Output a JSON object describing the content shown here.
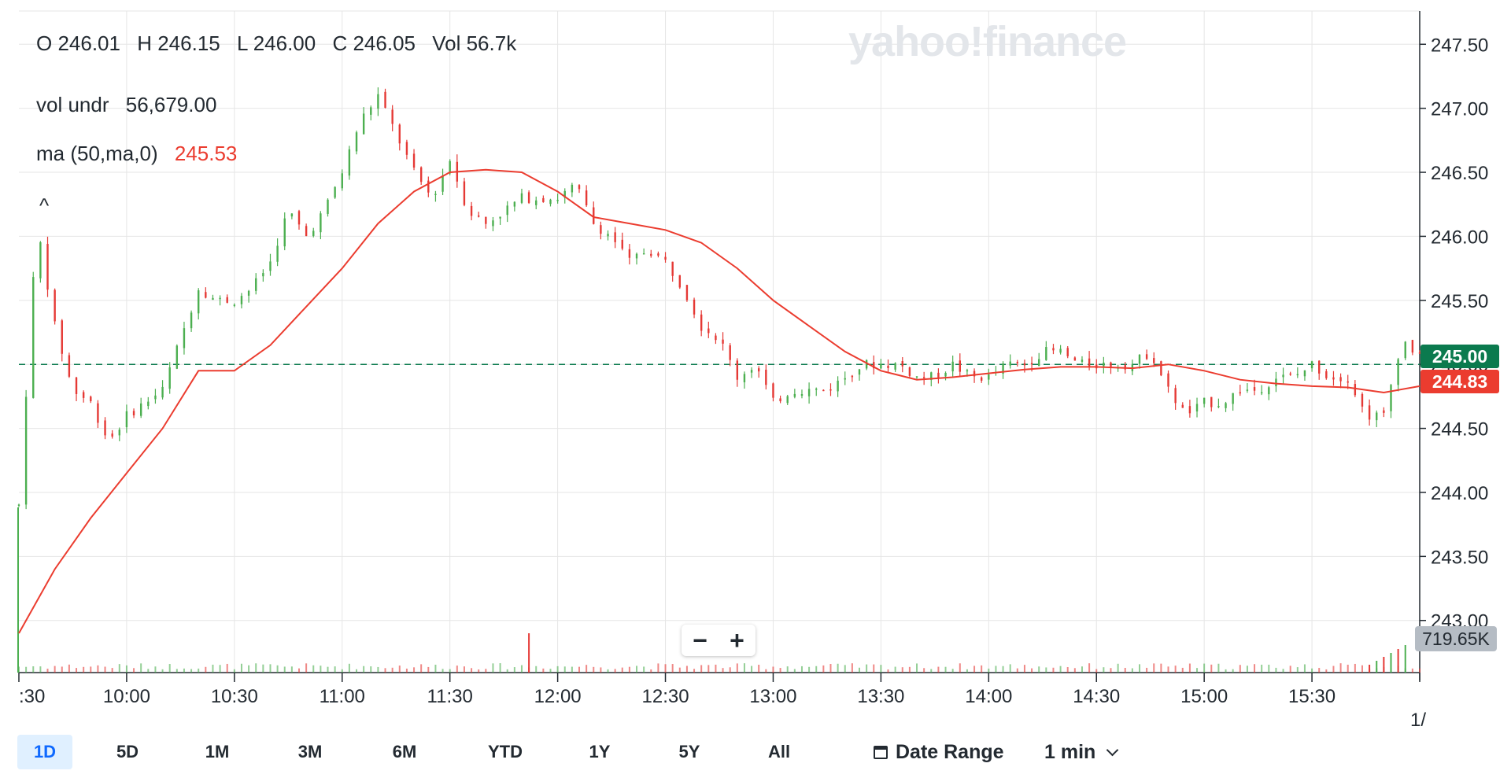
{
  "legend": {
    "open": "O 246.01",
    "high": "H 246.15",
    "low": "L 246.00",
    "close": "C 246.05",
    "vol": "Vol 56.7k",
    "vol_undr_label": "vol undr",
    "vol_undr_value": "56,679.00",
    "ma_label": "ma (50,ma,0)",
    "ma_value": "245.53",
    "collapse_glyph": "^"
  },
  "watermark": "yahoo!finance",
  "zoom": {
    "minus": "−",
    "plus": "+"
  },
  "tags": {
    "last_price": "245.00",
    "ma_price": "244.83",
    "volume": "719.65K"
  },
  "range_buttons": [
    {
      "label": "1D",
      "active": true
    },
    {
      "label": "5D",
      "active": false
    },
    {
      "label": "1M",
      "active": false
    },
    {
      "label": "3M",
      "active": false
    },
    {
      "label": "6M",
      "active": false
    },
    {
      "label": "YTD",
      "active": false
    },
    {
      "label": "1Y",
      "active": false
    },
    {
      "label": "5Y",
      "active": false
    },
    {
      "label": "All",
      "active": false
    }
  ],
  "date_range_label": "Date Range",
  "interval_label": "1 min",
  "colors": {
    "up": "#4caf50",
    "down": "#e53935",
    "ma": "#eb3c2f",
    "grid": "#e6e6e6",
    "ref_line": "#0b7a4e"
  },
  "chart_data": {
    "type": "line",
    "y_ticks": [
      "247.50",
      "247.00",
      "246.50",
      "246.00",
      "245.50",
      "245.00",
      "244.50",
      "244.00",
      "243.50",
      "243.00"
    ],
    "x_ticks": [
      ":30",
      "10:00",
      "10:30",
      "11:00",
      "11:30",
      "12:00",
      "12:30",
      "13:00",
      "13:30",
      "14:00",
      "14:30",
      "15:00",
      "15:30",
      "1/"
    ],
    "ylim": [
      242.9,
      247.6
    ],
    "reference_line": 245.0,
    "series": [
      {
        "name": "price",
        "x": [
          "09:30",
          "09:35",
          "09:40",
          "09:45",
          "09:50",
          "09:55",
          "10:00",
          "10:05",
          "10:10",
          "10:15",
          "10:20",
          "10:25",
          "10:30",
          "10:35",
          "10:40",
          "10:45",
          "10:50",
          "10:55",
          "11:00",
          "11:05",
          "11:10",
          "11:15",
          "11:20",
          "11:25",
          "11:30",
          "11:35",
          "11:40",
          "11:45",
          "11:50",
          "11:55",
          "12:00",
          "12:05",
          "12:10",
          "12:15",
          "12:20",
          "12:25",
          "12:30",
          "12:35",
          "12:40",
          "12:45",
          "12:50",
          "12:55",
          "13:00",
          "13:05",
          "13:10",
          "13:15",
          "13:20",
          "13:25",
          "13:30",
          "13:35",
          "13:40",
          "13:45",
          "13:50",
          "13:55",
          "14:00",
          "14:05",
          "14:10",
          "14:15",
          "14:20",
          "14:25",
          "14:30",
          "14:35",
          "14:40",
          "14:45",
          "14:50",
          "14:55",
          "15:00",
          "15:05",
          "15:10",
          "15:15",
          "15:20",
          "15:25",
          "15:30",
          "15:35",
          "15:40",
          "15:45",
          "15:50",
          "15:55",
          "16:00"
        ],
        "values": [
          243.9,
          246.1,
          245.3,
          244.8,
          244.7,
          244.4,
          244.6,
          244.7,
          244.8,
          245.2,
          245.6,
          245.5,
          245.5,
          245.6,
          245.8,
          246.2,
          246.0,
          246.2,
          246.5,
          246.9,
          247.1,
          246.8,
          246.5,
          246.3,
          246.6,
          246.2,
          246.1,
          246.2,
          246.3,
          246.3,
          246.3,
          246.4,
          246.1,
          246.0,
          245.8,
          245.9,
          245.8,
          245.6,
          245.3,
          245.2,
          244.9,
          245.0,
          244.7,
          244.8,
          244.8,
          244.8,
          244.9,
          245.0,
          245.0,
          245.0,
          244.9,
          244.9,
          245.0,
          244.9,
          244.9,
          245.0,
          245.0,
          245.1,
          245.1,
          245.0,
          245.0,
          245.0,
          245.0,
          245.1,
          244.8,
          244.6,
          244.7,
          244.7,
          244.8,
          244.8,
          244.9,
          244.9,
          245.0,
          244.9,
          244.9,
          244.6,
          244.6,
          245.2,
          245.05
        ]
      },
      {
        "name": "ma (50,ma,0)",
        "x": [
          "09:30",
          "09:40",
          "09:50",
          "10:00",
          "10:10",
          "10:20",
          "10:30",
          "10:40",
          "10:50",
          "11:00",
          "11:10",
          "11:20",
          "11:30",
          "11:40",
          "11:50",
          "12:00",
          "12:10",
          "12:20",
          "12:30",
          "12:40",
          "12:50",
          "13:00",
          "13:10",
          "13:20",
          "13:30",
          "13:40",
          "13:50",
          "14:00",
          "14:10",
          "14:20",
          "14:30",
          "14:40",
          "14:50",
          "15:00",
          "15:10",
          "15:20",
          "15:30",
          "15:40",
          "15:50",
          "16:00"
        ],
        "values": [
          242.9,
          243.4,
          243.8,
          244.15,
          244.5,
          244.95,
          244.95,
          245.15,
          245.45,
          245.75,
          246.1,
          246.35,
          246.5,
          246.52,
          246.5,
          246.35,
          246.15,
          246.1,
          246.05,
          245.95,
          245.75,
          245.5,
          245.3,
          245.1,
          244.95,
          244.88,
          244.9,
          244.93,
          244.96,
          244.98,
          244.98,
          244.97,
          245.0,
          244.95,
          244.88,
          244.85,
          244.83,
          244.82,
          244.78,
          244.83
        ]
      }
    ],
    "volume": {
      "spike_time": "11:52",
      "spike_label": "719.65K"
    }
  }
}
